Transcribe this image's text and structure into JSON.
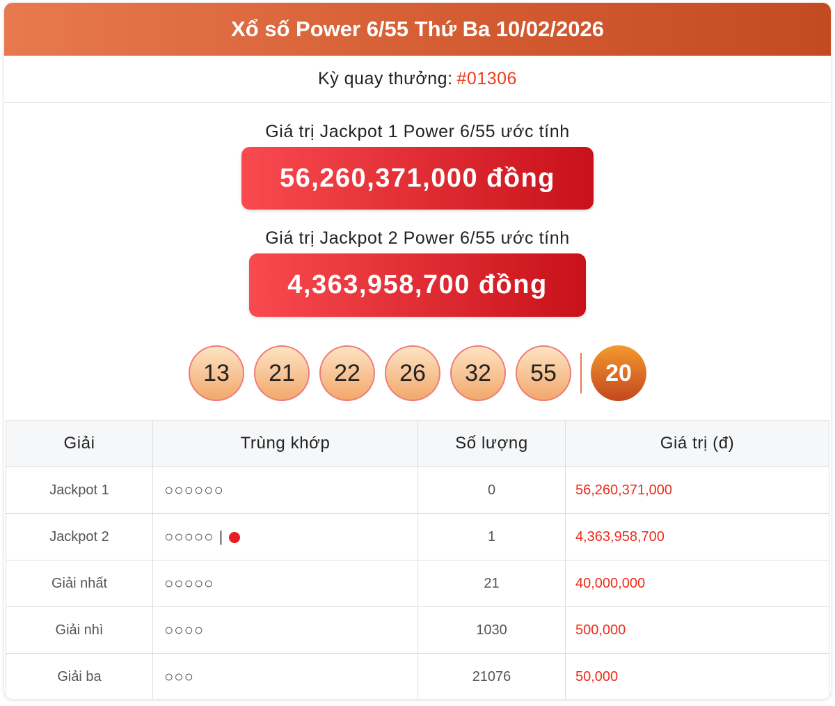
{
  "header": {
    "title": "Xổ số Power 6/55 Thứ Ba 10/02/2026"
  },
  "draw": {
    "label": "Kỳ quay thưởng:",
    "number": "#01306"
  },
  "jackpot1": {
    "label": "Giá trị Jackpot 1 Power 6/55 ước tính",
    "value": "56,260,371,000 đồng"
  },
  "jackpot2": {
    "label": "Giá trị Jackpot 2 Power 6/55 ước tính",
    "value": "4,363,958,700 đồng"
  },
  "balls": [
    "13",
    "21",
    "22",
    "26",
    "32",
    "55"
  ],
  "special_ball": "20",
  "colors": {
    "header": "#d25a30",
    "jackpot": "#e0262c",
    "value": "#ee2b1b",
    "bonus_dot": "#e81c24"
  },
  "table": {
    "headers": [
      "Giải",
      "Trùng khớp",
      "Số lượng",
      "Giá trị (đ)"
    ],
    "rows": [
      {
        "prize": "Jackpot 1",
        "match": "○○○○○○",
        "bonus": "",
        "count": "0",
        "value": "56,260,371,000"
      },
      {
        "prize": "Jackpot 2",
        "match": "○○○○○",
        "bonus": "|",
        "count": "1",
        "value": "4,363,958,700"
      },
      {
        "prize": "Giải nhất",
        "match": "○○○○○",
        "bonus": "",
        "count": "21",
        "value": "40,000,000"
      },
      {
        "prize": "Giải nhì",
        "match": "○○○○",
        "bonus": "",
        "count": "1030",
        "value": "500,000"
      },
      {
        "prize": "Giải ba",
        "match": "○○○",
        "bonus": "",
        "count": "21076",
        "value": "50,000"
      }
    ]
  }
}
